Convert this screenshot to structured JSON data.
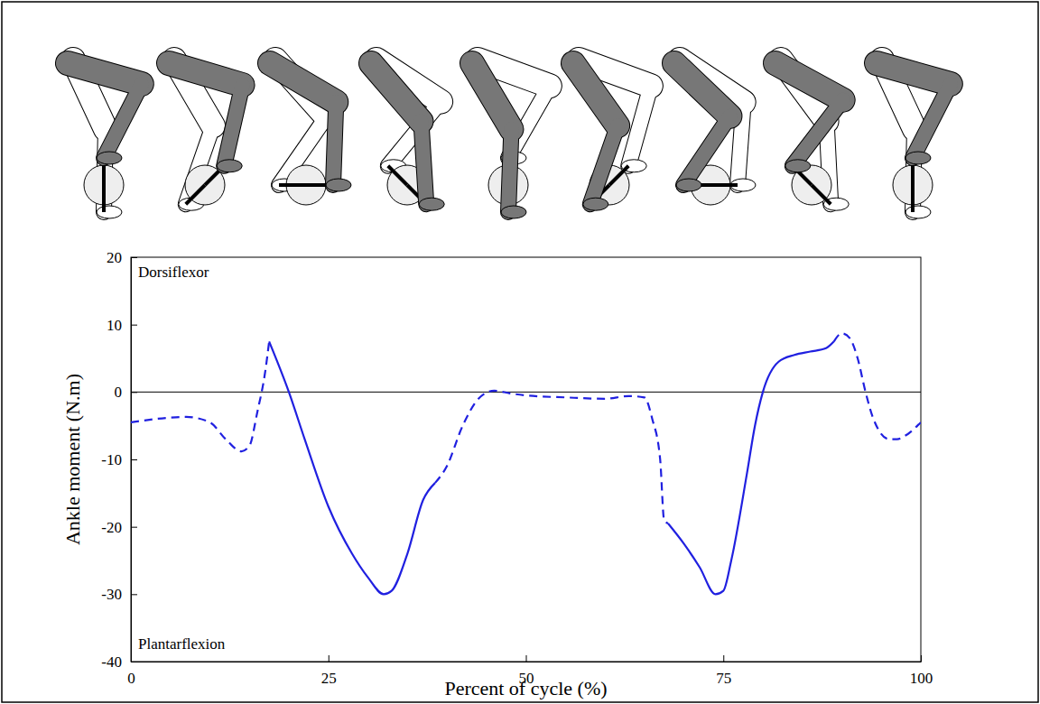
{
  "chart_data": {
    "type": "line",
    "x_label": "Percent of cycle (%)",
    "y_label": "Ankle moment (N.m)",
    "annotations": [
      "Dorsiflexor",
      "Plantarflexion"
    ],
    "x": [
      0,
      5,
      7,
      10,
      12,
      14,
      15,
      16,
      17,
      17.5,
      20,
      22,
      25,
      28,
      30,
      32,
      33,
      35,
      37,
      38.5,
      40,
      42,
      44,
      46,
      48,
      50,
      55,
      60,
      63,
      65,
      66,
      67,
      67.5,
      68,
      70,
      72,
      74,
      75,
      76,
      78,
      79,
      80,
      82,
      84,
      86,
      88,
      89,
      90,
      91,
      92,
      93,
      94,
      96,
      97,
      98,
      100
    ],
    "series": [
      {
        "color": "#2020e0",
        "line_style": "dashed",
        "values": [
          -4.5,
          -3.8,
          -3.7,
          -4.5,
          -7,
          -8.8,
          -8,
          -3,
          3,
          7.5,
          null,
          null,
          null,
          null,
          null,
          null,
          null,
          null,
          null,
          -13.5,
          -11,
          -5,
          -1,
          0.2,
          -0.2,
          -0.5,
          -0.8,
          -1,
          -0.6,
          -0.8,
          -4,
          -10,
          -19,
          -19.5,
          null,
          null,
          null,
          null,
          null,
          null,
          null,
          null,
          null,
          null,
          null,
          null,
          7.5,
          8.7,
          8,
          5,
          0,
          -4,
          -7,
          -7,
          -6.5,
          -4.5
        ]
      },
      {
        "color": "#2020e0",
        "line_style": "solid",
        "values": [
          null,
          null,
          null,
          null,
          null,
          null,
          null,
          null,
          null,
          7.5,
          0,
          -7,
          -17,
          -24,
          -27.5,
          -30,
          -29.5,
          -24,
          -16,
          -13.5,
          null,
          null,
          null,
          null,
          null,
          null,
          null,
          null,
          null,
          null,
          null,
          null,
          null,
          -19.5,
          -22.5,
          -26,
          -30,
          -29.5,
          -25,
          -12,
          -5,
          0,
          4.5,
          5.5,
          6,
          6.5,
          7.5,
          null,
          null,
          null,
          null,
          null,
          null,
          null,
          null,
          null
        ]
      }
    ],
    "reference_line": 0,
    "xlim": [
      0,
      100
    ],
    "ylim": [
      -40,
      20
    ],
    "xticks": [
      0,
      25,
      50,
      75,
      100
    ],
    "yticks": [
      -40,
      -30,
      -20,
      -10,
      0,
      10,
      20
    ]
  }
}
